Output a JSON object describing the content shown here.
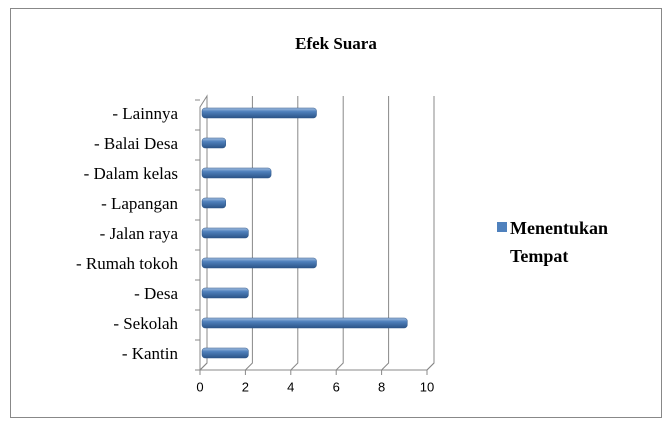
{
  "chart_data": {
    "type": "bar",
    "orientation": "horizontal",
    "title": "Efek Suara",
    "categories": [
      "- Kantin",
      "- Sekolah",
      "- Desa",
      "- Rumah tokoh",
      "- Jalan raya",
      "- Lapangan",
      "- Dalam kelas",
      "- Balai Desa",
      "- Lainnya"
    ],
    "series": [
      {
        "name": "Menentukan Tempat",
        "color": "#4f81bd",
        "values": [
          2,
          9,
          2,
          5,
          2,
          1,
          3,
          1,
          5
        ]
      }
    ],
    "xlim": [
      0,
      10
    ],
    "xticks": [
      0,
      2,
      4,
      6,
      8,
      10
    ],
    "grid": true,
    "legend": "right"
  }
}
